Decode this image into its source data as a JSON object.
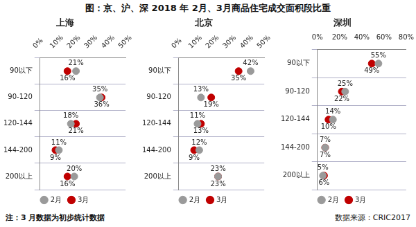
{
  "title": "图：京、沪、深 2018 年 2月、3月商品住宅成交面积段比重",
  "note": "注：3 月数据为初步统计数据",
  "source": "数据来源：CRIC2017",
  "chart_data": [
    {
      "type": "scatter",
      "title": "上海",
      "orientation": "horizontal",
      "categories": [
        "90以下",
        "90-120",
        "120-144",
        "144-200",
        "200以上"
      ],
      "series": [
        {
          "name": "2月",
          "color": "#9a9a9a",
          "marker": "circle",
          "line_style": "none",
          "values": [
            21,
            35,
            18,
            11,
            20
          ],
          "value_labels": [
            "21%",
            "35%",
            "18%",
            "11%",
            "20%"
          ]
        },
        {
          "name": "3月",
          "color": "#c00000",
          "marker": "circle",
          "line_style": "none",
          "values": [
            16,
            36,
            21,
            9,
            16
          ],
          "value_labels": [
            "16%",
            "36%",
            "21%",
            "9%",
            "16%"
          ]
        }
      ],
      "xlim": [
        0,
        50
      ],
      "xticks": [
        {
          "value": 0,
          "label": "0%"
        },
        {
          "value": 10,
          "label": "10%"
        },
        {
          "value": 20,
          "label": "20%"
        },
        {
          "value": 30,
          "label": "30%"
        },
        {
          "value": 40,
          "label": "40%"
        },
        {
          "value": 50,
          "label": "50%"
        }
      ],
      "grid": true,
      "legend": "bottom",
      "data_labels": true
    },
    {
      "type": "scatter",
      "title": "北京",
      "orientation": "horizontal",
      "categories": [
        "90以下",
        "90-120",
        "120-144",
        "144-200",
        "200以上"
      ],
      "series": [
        {
          "name": "2月",
          "color": "#9a9a9a",
          "marker": "circle",
          "line_style": "none",
          "values": [
            42,
            13,
            11,
            12,
            23
          ],
          "value_labels": [
            "42%",
            "13%",
            "11%",
            "12%",
            "23%"
          ]
        },
        {
          "name": "3月",
          "color": "#c00000",
          "marker": "circle",
          "line_style": "none",
          "values": [
            35,
            19,
            13,
            9,
            23
          ],
          "value_labels": [
            "35%",
            "19%",
            "13%",
            "9%",
            "23%"
          ]
        }
      ],
      "xlim": [
        0,
        50
      ],
      "xticks": [
        {
          "value": 0,
          "label": "0%"
        },
        {
          "value": 10,
          "label": "10%"
        },
        {
          "value": 20,
          "label": "20%"
        },
        {
          "value": 30,
          "label": "30%"
        },
        {
          "value": 40,
          "label": "40%"
        },
        {
          "value": 50,
          "label": "50%"
        }
      ],
      "grid": true,
      "legend": "bottom",
      "data_labels": true
    },
    {
      "type": "scatter",
      "title": "深圳",
      "orientation": "horizontal",
      "categories": [
        "90以下",
        "90-120",
        "120-144",
        "144-200",
        "200以上"
      ],
      "series": [
        {
          "name": "2月",
          "color": "#9a9a9a",
          "marker": "circle",
          "line_style": "none",
          "values": [
            55,
            25,
            14,
            7,
            5
          ],
          "value_labels": [
            "55%",
            "25%",
            "14%",
            "7%",
            "5%"
          ]
        },
        {
          "name": "3月",
          "color": "#c00000",
          "marker": "circle",
          "line_style": "none",
          "values": [
            49,
            22,
            10,
            7,
            6
          ],
          "value_labels": [
            "49%",
            "22%",
            "10%",
            "7%",
            "6%"
          ]
        }
      ],
      "xlim": [
        0,
        80
      ],
      "xticks": [
        {
          "value": 0,
          "label": "0%"
        },
        {
          "value": 20,
          "label": "20%"
        },
        {
          "value": 40,
          "label": "40%"
        },
        {
          "value": 60,
          "label": "60%"
        },
        {
          "value": 80,
          "label": "80%"
        }
      ],
      "grid": true,
      "legend": "bottom",
      "data_labels": true
    }
  ]
}
